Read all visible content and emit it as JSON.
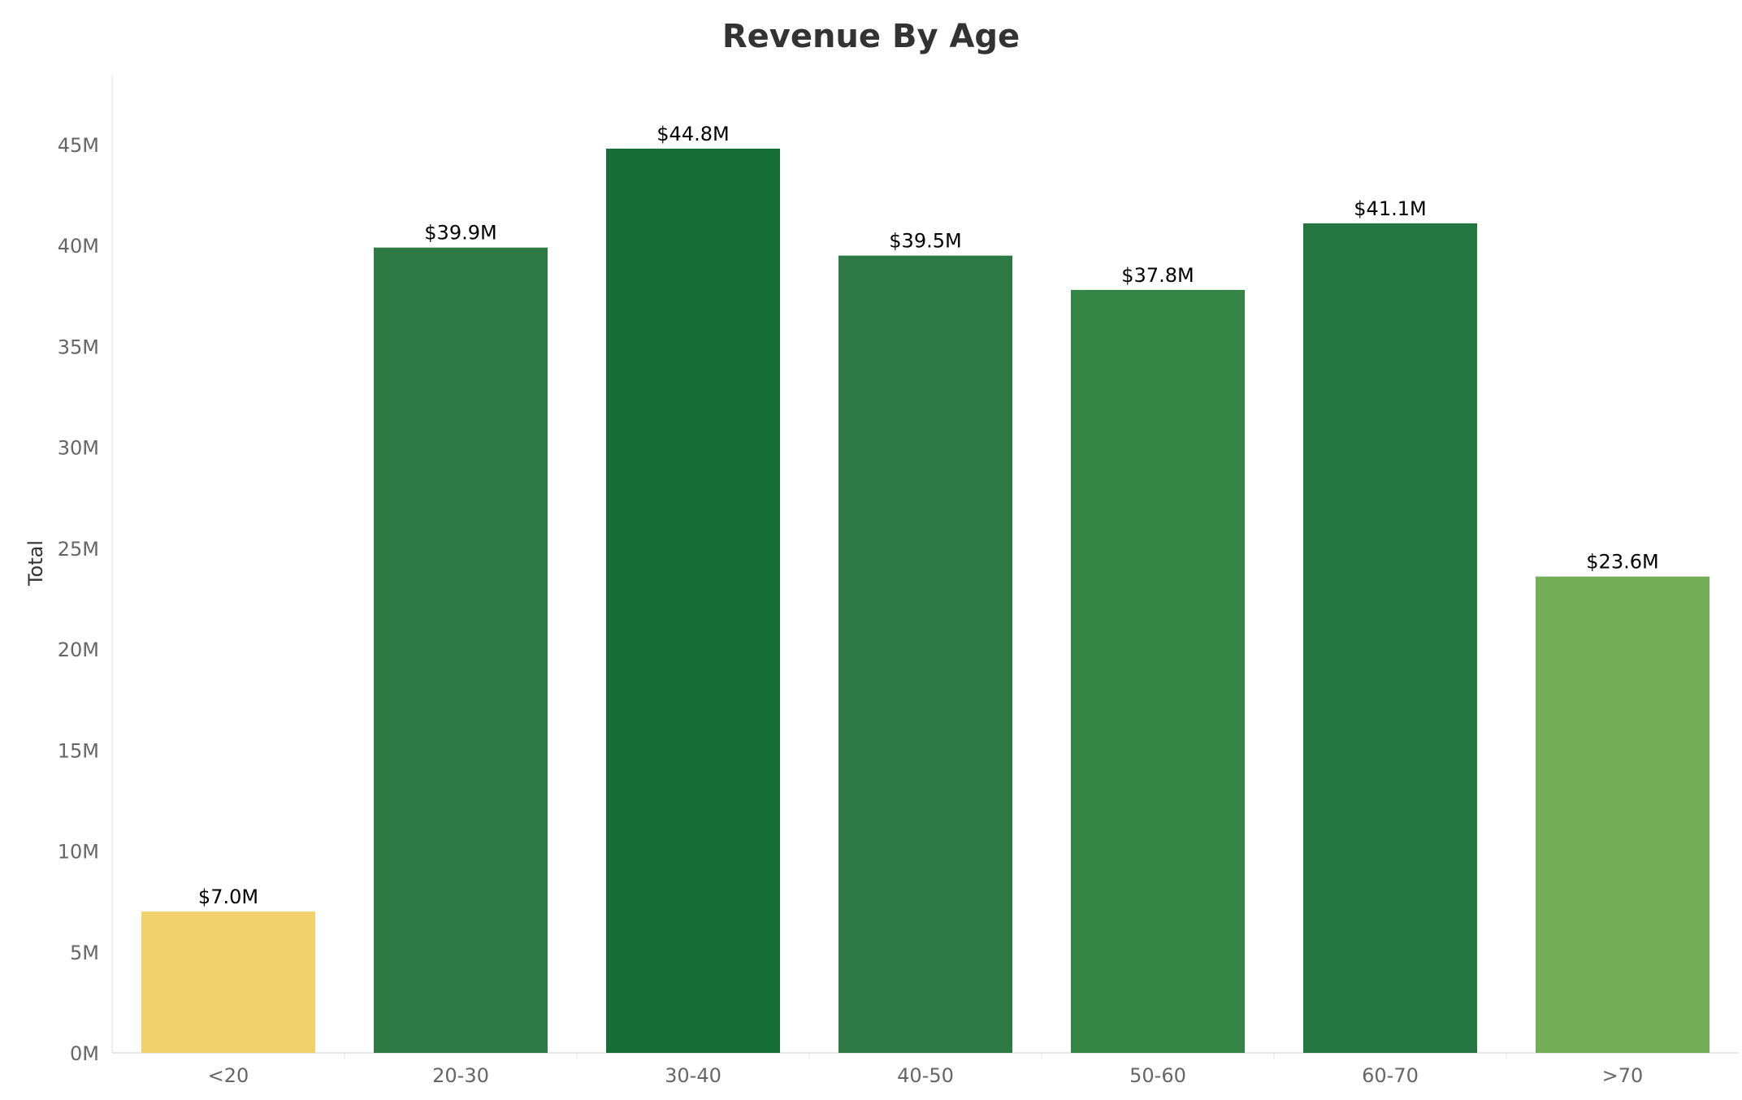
{
  "chart_data": {
    "type": "bar",
    "title": "Revenue By Age",
    "xlabel": "",
    "ylabel": "Total",
    "categories": [
      "<20",
      "20-30",
      "30-40",
      "40-50",
      "50-60",
      "60-70",
      ">70"
    ],
    "values": [
      7.0,
      39.9,
      44.8,
      39.5,
      37.8,
      41.1,
      23.6
    ],
    "value_labels": [
      "$7.0M",
      "$39.9M",
      "$44.8M",
      "$39.5M",
      "$37.8M",
      "$41.1M",
      "$23.6M"
    ],
    "bar_colors": [
      "#F2D16B",
      "#2D7A45",
      "#166E37",
      "#2D7A45",
      "#348446",
      "#247640",
      "#74AD57"
    ],
    "yticks": [
      0,
      5,
      10,
      15,
      20,
      25,
      30,
      35,
      40,
      45
    ],
    "ytick_labels": [
      "0M",
      "5M",
      "10M",
      "15M",
      "20M",
      "25M",
      "30M",
      "35M",
      "40M",
      "45M"
    ],
    "ylim": [
      0,
      48.5
    ],
    "grid": false,
    "legend": "none"
  }
}
